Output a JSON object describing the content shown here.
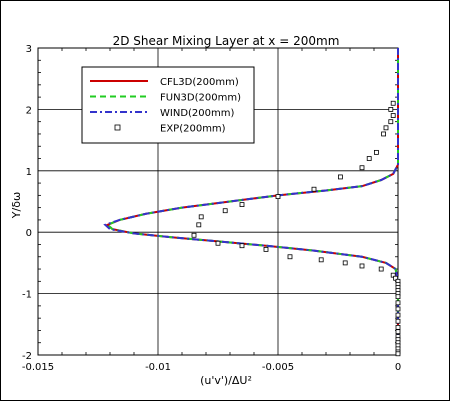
{
  "chart_data": {
    "type": "line",
    "title": "2D Shear Mixing Layer at x = 200mm",
    "xlabel": "(u'v')/ΔU²",
    "ylabel": "Y/δω",
    "xlim": [
      -0.015,
      0
    ],
    "ylim": [
      -2,
      3
    ],
    "x_ticks": [
      -0.015,
      -0.01,
      -0.005,
      0
    ],
    "x_tick_labels": [
      "-0.015",
      "-0.01",
      "-0.005",
      "0"
    ],
    "y_ticks": [
      -2,
      -1,
      0,
      1,
      2,
      3
    ],
    "y_tick_labels": [
      "-2",
      "-1",
      "0",
      "1",
      "2",
      "3"
    ],
    "grid": true,
    "legend_position": "top-left",
    "series": [
      {
        "name": "CFL3D(200mm)",
        "style": "solid",
        "color": "#cc0000",
        "x": [
          0,
          0,
          0,
          -0.0002,
          -0.0007,
          -0.0015,
          -0.003,
          -0.005,
          -0.007,
          -0.009,
          -0.0105,
          -0.0116,
          -0.0121,
          -0.0119,
          -0.011,
          -0.0095,
          -0.0075,
          -0.0055,
          -0.0035,
          -0.0015,
          -0.0005,
          -0.0001,
          0,
          0,
          0
        ],
        "y": [
          3,
          2,
          1.1,
          0.95,
          0.85,
          0.75,
          0.68,
          0.6,
          0.5,
          0.4,
          0.3,
          0.2,
          0.12,
          0.05,
          -0.02,
          -0.08,
          -0.15,
          -0.22,
          -0.3,
          -0.4,
          -0.5,
          -0.6,
          -0.8,
          -1.5,
          -2
        ]
      },
      {
        "name": "FUN3D(200mm)",
        "style": "dashed",
        "color": "#22cc22",
        "x": [
          0,
          0,
          0,
          -0.0002,
          -0.0007,
          -0.0015,
          -0.003,
          -0.005,
          -0.007,
          -0.009,
          -0.0105,
          -0.0116,
          -0.0121,
          -0.0119,
          -0.011,
          -0.0095,
          -0.0075,
          -0.0055,
          -0.0035,
          -0.0015,
          -0.0005,
          -0.0001,
          0,
          0,
          0
        ],
        "y": [
          3,
          2,
          1.1,
          0.95,
          0.85,
          0.75,
          0.68,
          0.6,
          0.5,
          0.4,
          0.3,
          0.2,
          0.12,
          0.05,
          -0.02,
          -0.08,
          -0.15,
          -0.22,
          -0.3,
          -0.4,
          -0.5,
          -0.6,
          -0.8,
          -1.5,
          -2
        ]
      },
      {
        "name": "WIND(200mm)",
        "style": "dashdot",
        "color": "#3333cc",
        "x": [
          0,
          0,
          0,
          -0.0002,
          -0.0007,
          -0.0015,
          -0.003,
          -0.005,
          -0.007,
          -0.009,
          -0.0105,
          -0.0116,
          -0.0122,
          -0.012,
          -0.011,
          -0.0095,
          -0.0075,
          -0.0055,
          -0.0035,
          -0.0015,
          -0.0005,
          -0.0001,
          0,
          0,
          0
        ],
        "y": [
          3,
          2,
          1.1,
          0.95,
          0.85,
          0.75,
          0.68,
          0.6,
          0.5,
          0.4,
          0.3,
          0.2,
          0.12,
          0.05,
          -0.02,
          -0.08,
          -0.15,
          -0.22,
          -0.3,
          -0.4,
          -0.5,
          -0.6,
          -0.8,
          -1.5,
          -2
        ]
      },
      {
        "name": "EXP(200mm)",
        "style": "markers",
        "color": "#000000",
        "x": [
          -0.0002,
          -0.0003,
          -0.0002,
          -0.0003,
          -0.0005,
          -0.0006,
          -0.0009,
          -0.0012,
          -0.0015,
          -0.0024,
          -0.0035,
          -0.005,
          -0.0065,
          -0.0072,
          -0.0082,
          -0.0083,
          -0.0085,
          -0.0075,
          -0.0065,
          -0.0055,
          -0.0045,
          -0.0032,
          -0.0022,
          -0.0015,
          -0.0007,
          -0.0002,
          -0.0001,
          0,
          0,
          0,
          0,
          0,
          0,
          0,
          0,
          0,
          0,
          0,
          0,
          0,
          0,
          0,
          0,
          0,
          0,
          0
        ],
        "y": [
          2.1,
          2.0,
          1.9,
          1.8,
          1.7,
          1.6,
          1.3,
          1.2,
          1.05,
          0.9,
          0.7,
          0.58,
          0.45,
          0.35,
          0.25,
          0.12,
          -0.05,
          -0.18,
          -0.22,
          -0.28,
          -0.4,
          -0.45,
          -0.5,
          -0.55,
          -0.6,
          -0.7,
          -0.75,
          -0.8,
          -0.85,
          -0.9,
          -0.95,
          -1.0,
          -1.05,
          -1.15,
          -1.25,
          -1.35,
          -1.45,
          -1.55,
          -1.62,
          -1.7,
          -1.75,
          -1.8,
          -1.85,
          -1.9,
          -1.95,
          -1.98
        ]
      }
    ]
  }
}
